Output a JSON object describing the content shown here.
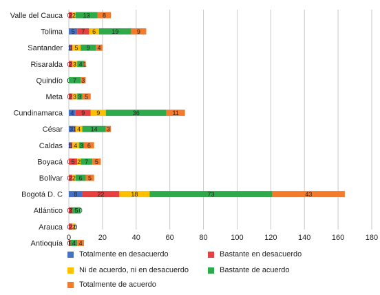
{
  "chart_data": {
    "type": "bar",
    "orientation": "horizontal",
    "stacked": true,
    "categories": [
      "Valle del Cauca",
      "Tolima",
      "Santander",
      "Risaralda",
      "Quindío",
      "Meta",
      "Cundinamarca",
      "César",
      "Caldas",
      "Boyacá",
      "Bolívar",
      "Bogotá D. C",
      "Atlántico",
      "Arauca",
      "Antioquía"
    ],
    "series": [
      {
        "name": "Totalmente en desacuerdo",
        "color": "#4472c4",
        "values": [
          0,
          5,
          1,
          0,
          0,
          0,
          4,
          3,
          1,
          0,
          0,
          8,
          0,
          0,
          0
        ]
      },
      {
        "name": "Bastante en desacuerdo",
        "color": "#e84040",
        "values": [
          2,
          7,
          1,
          2,
          0,
          2,
          9,
          1,
          1,
          5,
          2,
          22,
          2,
          2,
          1
        ]
      },
      {
        "name": "Ni de acuerdo, ni en desacuerdo",
        "color": "#ffc000",
        "values": [
          2,
          6,
          5,
          3,
          0,
          3,
          9,
          4,
          4,
          2,
          2,
          18,
          0,
          2,
          0
        ]
      },
      {
        "name": "Bastante de acuerdo",
        "color": "#2eaa4a",
        "values": [
          13,
          19,
          9,
          4,
          7,
          3,
          36,
          14,
          3,
          7,
          6,
          73,
          5,
          0,
          4
        ]
      },
      {
        "name": "Totalmente de acuerdo",
        "color": "#f47b2c",
        "values": [
          8,
          9,
          4,
          1,
          3,
          5,
          11,
          3,
          6,
          5,
          5,
          43,
          0,
          0,
          4
        ]
      }
    ],
    "x_ticks": [
      "0",
      "20",
      "40",
      "60",
      "80",
      "100",
      "120",
      "140",
      "160",
      "180"
    ],
    "xlim": [
      0,
      180
    ],
    "grid": true,
    "legend_position": "bottom"
  }
}
